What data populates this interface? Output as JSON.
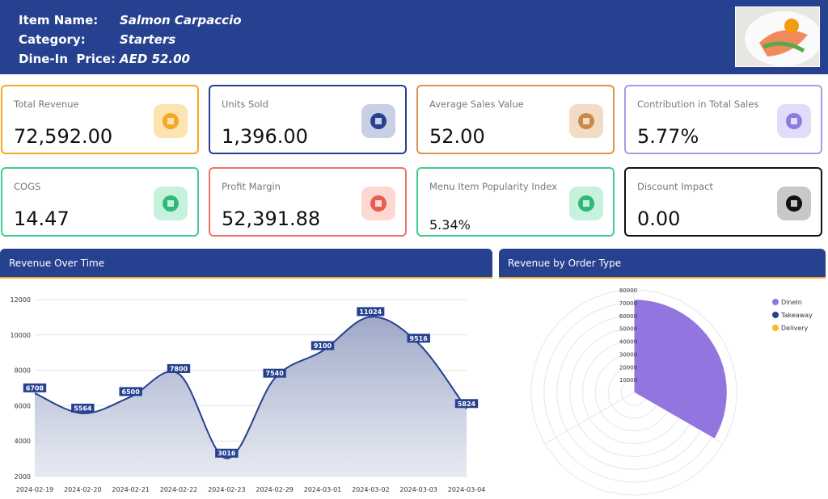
{
  "header": {
    "fields": [
      {
        "label": "Item Name:",
        "value": "Salmon Carpaccio"
      },
      {
        "label": "Category:",
        "value": "Starters"
      },
      {
        "label": "Dine-In  Price:",
        "value": "AED 52.00"
      }
    ]
  },
  "kpis": [
    {
      "label": "Total Revenue",
      "value": "72,592.00"
    },
    {
      "label": "Units Sold",
      "value": "1,396.00"
    },
    {
      "label": "Average Sales Value",
      "value": "52.00"
    },
    {
      "label": "Contribution in Total Sales",
      "value": "5.77%"
    },
    {
      "label": "COGS",
      "value": "14.47"
    },
    {
      "label": "Profit Margin",
      "value": "52,391.88"
    },
    {
      "label": "Menu Item Popularity Index",
      "value": "5.34%"
    },
    {
      "label": "Discount Impact",
      "value": "0.00"
    }
  ],
  "chart_data": [
    {
      "type": "line",
      "title": "Revenue Over Time",
      "categories": [
        "2024-02-19",
        "2024-02-20",
        "2024-02-21",
        "2024-02-22",
        "2024-02-23",
        "2024-02-29",
        "2024-03-01",
        "2024-03-02",
        "2024-03-03",
        "2024-03-04"
      ],
      "values": [
        6708,
        5564,
        6500,
        7800,
        3016,
        7540,
        9100,
        11024,
        9516,
        5824
      ],
      "color": "#26418f",
      "ylim": [
        2000,
        12000
      ],
      "yticks": [
        2000,
        4000,
        6000,
        8000,
        10000,
        12000
      ],
      "grid": true
    },
    {
      "type": "polarArea",
      "title": "Revenue by Order Type",
      "categories": [
        "DineIn",
        "Takeaway",
        "Delivery"
      ],
      "values": [
        72592,
        0,
        0
      ],
      "colors": [
        "#9375e0",
        "#26418f",
        "#f5b82e"
      ],
      "rlim": [
        0,
        80000
      ],
      "rticks": [
        10000,
        20000,
        30000,
        40000,
        50000,
        60000,
        70000,
        80000
      ],
      "legend": "top-right"
    }
  ]
}
